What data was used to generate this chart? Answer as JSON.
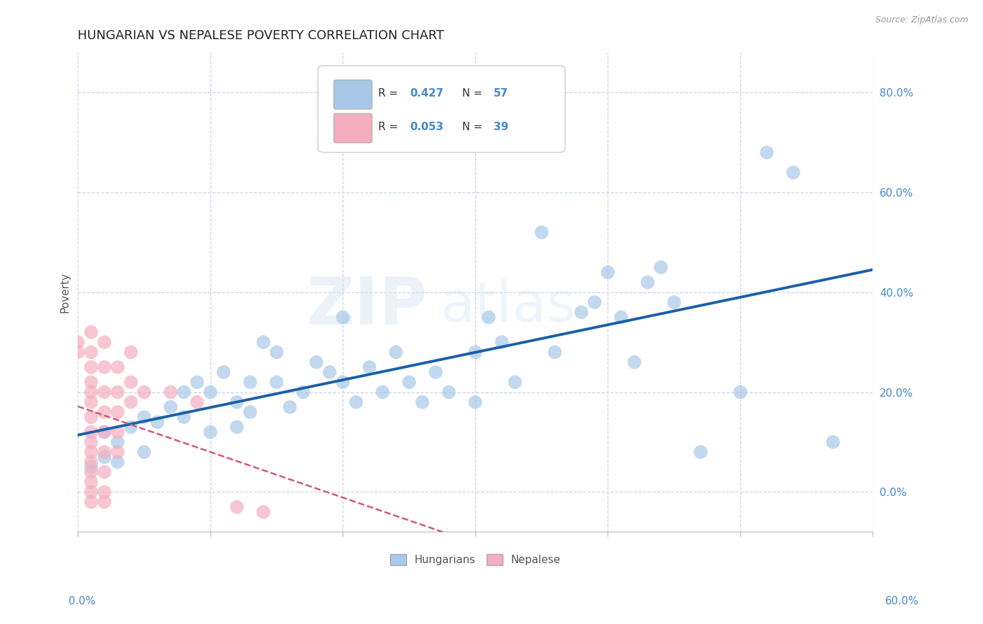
{
  "title": "HUNGARIAN VS NEPALESE POVERTY CORRELATION CHART",
  "source": "Source: ZipAtlas.com",
  "ylabel": "Poverty",
  "ylabel_right_values": [
    0.0,
    0.2,
    0.4,
    0.6,
    0.8
  ],
  "xmin": 0.0,
  "xmax": 0.6,
  "ymin": -0.08,
  "ymax": 0.88,
  "hungarian_color": "#a8c8e8",
  "nepalese_color": "#f4aec0",
  "hungarian_line_color": "#1a5fa8",
  "nepalese_line_color": "#d05878",
  "background_color": "#ffffff",
  "grid_color": "#c8d4e8",
  "hungarian_scatter": [
    [
      0.01,
      0.05
    ],
    [
      0.02,
      0.07
    ],
    [
      0.02,
      0.12
    ],
    [
      0.03,
      0.1
    ],
    [
      0.03,
      0.06
    ],
    [
      0.04,
      0.13
    ],
    [
      0.05,
      0.15
    ],
    [
      0.05,
      0.08
    ],
    [
      0.06,
      0.14
    ],
    [
      0.07,
      0.17
    ],
    [
      0.08,
      0.2
    ],
    [
      0.08,
      0.15
    ],
    [
      0.09,
      0.22
    ],
    [
      0.1,
      0.2
    ],
    [
      0.1,
      0.12
    ],
    [
      0.11,
      0.24
    ],
    [
      0.12,
      0.18
    ],
    [
      0.12,
      0.13
    ],
    [
      0.13,
      0.22
    ],
    [
      0.13,
      0.16
    ],
    [
      0.14,
      0.3
    ],
    [
      0.15,
      0.28
    ],
    [
      0.15,
      0.22
    ],
    [
      0.16,
      0.17
    ],
    [
      0.17,
      0.2
    ],
    [
      0.18,
      0.26
    ],
    [
      0.19,
      0.24
    ],
    [
      0.2,
      0.35
    ],
    [
      0.2,
      0.22
    ],
    [
      0.21,
      0.18
    ],
    [
      0.22,
      0.25
    ],
    [
      0.23,
      0.2
    ],
    [
      0.24,
      0.28
    ],
    [
      0.25,
      0.22
    ],
    [
      0.26,
      0.18
    ],
    [
      0.27,
      0.24
    ],
    [
      0.28,
      0.2
    ],
    [
      0.3,
      0.28
    ],
    [
      0.3,
      0.18
    ],
    [
      0.31,
      0.35
    ],
    [
      0.32,
      0.3
    ],
    [
      0.33,
      0.22
    ],
    [
      0.35,
      0.52
    ],
    [
      0.36,
      0.28
    ],
    [
      0.38,
      0.36
    ],
    [
      0.39,
      0.38
    ],
    [
      0.4,
      0.44
    ],
    [
      0.41,
      0.35
    ],
    [
      0.42,
      0.26
    ],
    [
      0.43,
      0.42
    ],
    [
      0.44,
      0.45
    ],
    [
      0.45,
      0.38
    ],
    [
      0.47,
      0.08
    ],
    [
      0.5,
      0.2
    ],
    [
      0.52,
      0.68
    ],
    [
      0.54,
      0.64
    ],
    [
      0.57,
      0.1
    ]
  ],
  "nepalese_scatter": [
    [
      0.0,
      0.28
    ],
    [
      0.0,
      0.3
    ],
    [
      0.01,
      0.32
    ],
    [
      0.01,
      0.28
    ],
    [
      0.01,
      0.25
    ],
    [
      0.01,
      0.22
    ],
    [
      0.01,
      0.2
    ],
    [
      0.01,
      0.18
    ],
    [
      0.01,
      0.15
    ],
    [
      0.01,
      0.12
    ],
    [
      0.01,
      0.1
    ],
    [
      0.01,
      0.08
    ],
    [
      0.01,
      0.06
    ],
    [
      0.01,
      0.04
    ],
    [
      0.01,
      0.02
    ],
    [
      0.01,
      0.0
    ],
    [
      0.01,
      -0.02
    ],
    [
      0.02,
      0.3
    ],
    [
      0.02,
      0.25
    ],
    [
      0.02,
      0.2
    ],
    [
      0.02,
      0.16
    ],
    [
      0.02,
      0.12
    ],
    [
      0.02,
      0.08
    ],
    [
      0.02,
      0.04
    ],
    [
      0.02,
      0.0
    ],
    [
      0.02,
      -0.02
    ],
    [
      0.03,
      0.25
    ],
    [
      0.03,
      0.2
    ],
    [
      0.03,
      0.16
    ],
    [
      0.03,
      0.12
    ],
    [
      0.03,
      0.08
    ],
    [
      0.04,
      0.28
    ],
    [
      0.04,
      0.22
    ],
    [
      0.04,
      0.18
    ],
    [
      0.05,
      0.2
    ],
    [
      0.07,
      0.2
    ],
    [
      0.09,
      0.18
    ],
    [
      0.12,
      -0.03
    ],
    [
      0.14,
      -0.04
    ]
  ],
  "watermark_line1": "ZIP",
  "watermark_line2": "atlas",
  "title_fontsize": 13,
  "axis_label_fontsize": 11,
  "tick_fontsize": 11,
  "legend_fontsize": 11
}
